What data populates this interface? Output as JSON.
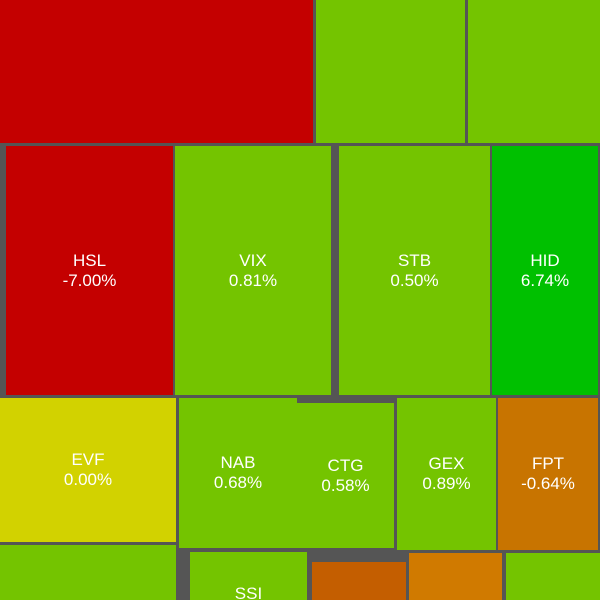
{
  "tiles": [
    {
      "label": "HSL",
      "change": "-7.00%"
    },
    {
      "label": "VIX",
      "change": "0.81%"
    },
    {
      "label": "STB",
      "change": "0.50%"
    },
    {
      "label": "HID",
      "change": "6.74%"
    },
    {
      "label": "EVF",
      "change": "0.00%"
    },
    {
      "label": "NAB",
      "change": "0.68%"
    },
    {
      "label": "CTG",
      "change": "0.58%"
    },
    {
      "label": "GEX",
      "change": "0.89%"
    },
    {
      "label": "FPT",
      "change": "-0.64%"
    },
    {
      "label": "SSI"
    }
  ]
}
